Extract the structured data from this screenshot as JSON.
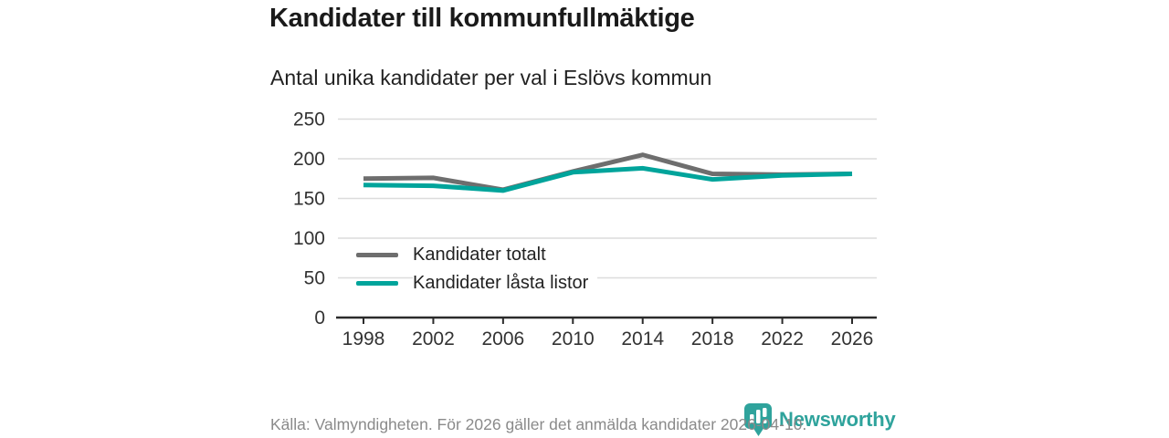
{
  "header": {
    "title": "Kandidater till kommunfullmäktige",
    "subtitle": "Antal unika kandidater per val i Eslövs kommun"
  },
  "chart_data": {
    "type": "line",
    "x": [
      1998,
      2002,
      2006,
      2010,
      2014,
      2018,
      2022,
      2026
    ],
    "series": [
      {
        "name": "Kandidater totalt",
        "color": "#6e6e6e",
        "values": [
          175,
          176,
          161,
          184,
          205,
          181,
          180,
          181
        ]
      },
      {
        "name": "Kandidater låsta listor",
        "color": "#00a49b",
        "values": [
          167,
          166,
          160,
          183,
          188,
          174,
          179,
          181
        ]
      }
    ],
    "yticks": [
      0,
      50,
      100,
      150,
      200,
      250
    ],
    "ylim": [
      0,
      250
    ],
    "xlabel": "",
    "ylabel": "",
    "grid": "horizontal-light",
    "legend_position": "inside-lower-left",
    "gridline_color": "#dcdcdc",
    "axis_color": "#2b2b2b",
    "tick_label_color": "#333333"
  },
  "footer": {
    "source": "Källa: Valmyndigheten. För 2026 gäller det anmälda kandidater 2026-04-10."
  },
  "branding": {
    "name": "Newsworthy",
    "color": "#2fa39c",
    "icon": "newsworthy-chart-bubble-icon"
  }
}
